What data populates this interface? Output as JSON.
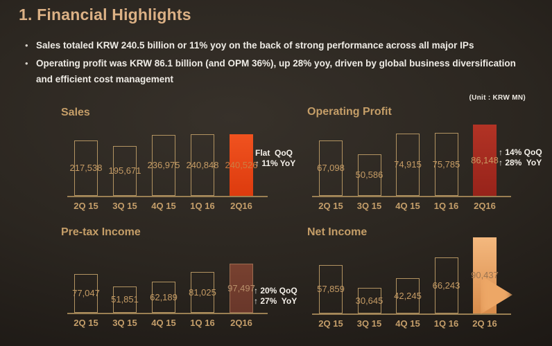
{
  "slide": {
    "title": "1. Financial Highlights",
    "bullets": [
      "Sales totaled KRW 240.5 billion or 11% yoy on the back of strong performance across all major IPs",
      "Operating profit was KRW 86.1 billion (and OPM 36%), up 28% yoy, driven by global business diversification and efficient cost management"
    ],
    "unit_label": "(Unit : KRW MN)"
  },
  "colors": {
    "background_center": "#37312a",
    "background_edge": "#171310",
    "title_gold": "#dcb185",
    "heading_gold": "#c59e68",
    "bar_outline": "#b39462",
    "axis_line": "#9a7f53",
    "value_text": "#c69c65",
    "category_text": "#c49e6a",
    "annotation_text": "#f5f1ea",
    "highlight_sales": "#e8481a",
    "highlight_operating": "#a62c1d",
    "highlight_pretax": "#6f3a2c",
    "highlight_net": "#eca567"
  },
  "chart_data": [
    {
      "type": "bar",
      "title": "Sales",
      "categories": [
        "2Q 15",
        "3Q 15",
        "4Q 15",
        "1Q 16",
        "2Q16"
      ],
      "values": [
        217538,
        195671,
        236975,
        240848,
        240526
      ],
      "value_labels": [
        "217,538",
        "195,671",
        "236,975",
        "240,848",
        "240,526"
      ],
      "highlight_index": 4,
      "highlight_fill": [
        "#f0521f",
        "#dd3b0e"
      ],
      "highlight_border": "",
      "highlight_label_color": "#cd7c42",
      "annotation_lines": [
        "Flat  QoQ",
        "↑ 11% YoY"
      ],
      "xlabel": "",
      "ylabel": "",
      "grid": false,
      "legend": false
    },
    {
      "type": "bar",
      "title": "Operating Profit",
      "categories": [
        "2Q 15",
        "3Q 15",
        "4Q 15",
        "1Q 16",
        "2Q16"
      ],
      "values": [
        67098,
        50586,
        74915,
        75785,
        86148
      ],
      "value_labels": [
        "67,098",
        "50,586",
        "74,915",
        "75,785",
        "86,148"
      ],
      "highlight_index": 4,
      "highlight_fill": [
        "#b23325",
        "#97231a"
      ],
      "highlight_border": "",
      "highlight_label_color": "#c89a62",
      "annotation_lines": [
        "↑ 14% QoQ",
        "↑ 28%  YoY"
      ],
      "xlabel": "",
      "ylabel": "",
      "grid": false,
      "legend": false
    },
    {
      "type": "bar",
      "title": "Pre-tax Income",
      "categories": [
        "2Q 15",
        "3Q 15",
        "4Q 15",
        "1Q 16",
        "2Q16"
      ],
      "values": [
        77047,
        51851,
        62189,
        81025,
        97497
      ],
      "value_labels": [
        "77,047",
        "51,851",
        "62,189",
        "81,025",
        "97,497"
      ],
      "highlight_index": 4,
      "highlight_fill": [
        "#784130",
        "#69372a"
      ],
      "highlight_border": "#9c6c50",
      "highlight_label_color": "#b8906a",
      "annotation_lines": [
        "↑ 20% QoQ",
        "↑ 27%  YoY"
      ],
      "xlabel": "",
      "ylabel": "",
      "grid": false,
      "legend": false
    },
    {
      "type": "bar",
      "title": "Net Income",
      "categories": [
        "2Q 15",
        "3Q 15",
        "4Q 15",
        "1Q 16",
        "2Q 16"
      ],
      "values": [
        57859,
        30645,
        42245,
        66243,
        90437
      ],
      "value_labels": [
        "57,859",
        "30,645",
        "42,245",
        "66,243",
        "90,437"
      ],
      "highlight_index": 4,
      "highlight_fill": [
        "#f4b87e",
        "#d88c4b"
      ],
      "highlight_border": "",
      "highlight_label_color": "#9a7350",
      "annotation_lines": [],
      "arrow": true,
      "arrow_color": "#eda766",
      "xlabel": "",
      "ylabel": "",
      "grid": false,
      "legend": false
    }
  ]
}
